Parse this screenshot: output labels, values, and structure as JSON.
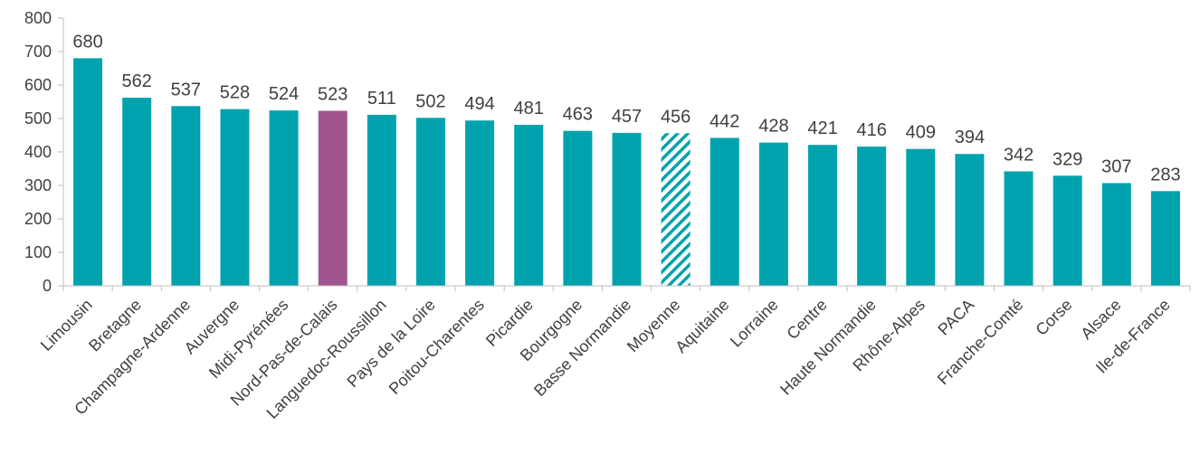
{
  "chart_data": {
    "type": "bar",
    "categories": [
      "Limousin",
      "Bretagne",
      "Champagne-Ardenne",
      "Auvergne",
      "Midi-Pyrénées",
      "Nord-Pas-de-Calais",
      "Languedoc-Roussillon",
      "Pays de la Loire",
      "Poitou-Charentes",
      "Picardie",
      "Bourgogne",
      "Basse Normandie",
      "Moyenne",
      "Aquitaine",
      "Lorraine",
      "Centre",
      "Haute Normandie",
      "Rhône-Alpes",
      "PACA",
      "Franche-Comté",
      "Corse",
      "Alsace",
      "Ile-de-France"
    ],
    "values": [
      680,
      562,
      537,
      528,
      524,
      523,
      511,
      502,
      494,
      481,
      463,
      457,
      456,
      442,
      428,
      421,
      416,
      409,
      394,
      342,
      329,
      307,
      283
    ],
    "title": "",
    "xlabel": "",
    "ylabel": "",
    "ylim": [
      0,
      800
    ],
    "yticks": [
      0,
      100,
      200,
      300,
      400,
      500,
      600,
      700,
      800
    ],
    "grid": false,
    "legend": "none",
    "colors": {
      "default": "#00A3AD",
      "highlight": "#A0558F",
      "highlight_category": "Nord-Pas-de-Calais",
      "hatched_category": "Moyenne"
    }
  }
}
